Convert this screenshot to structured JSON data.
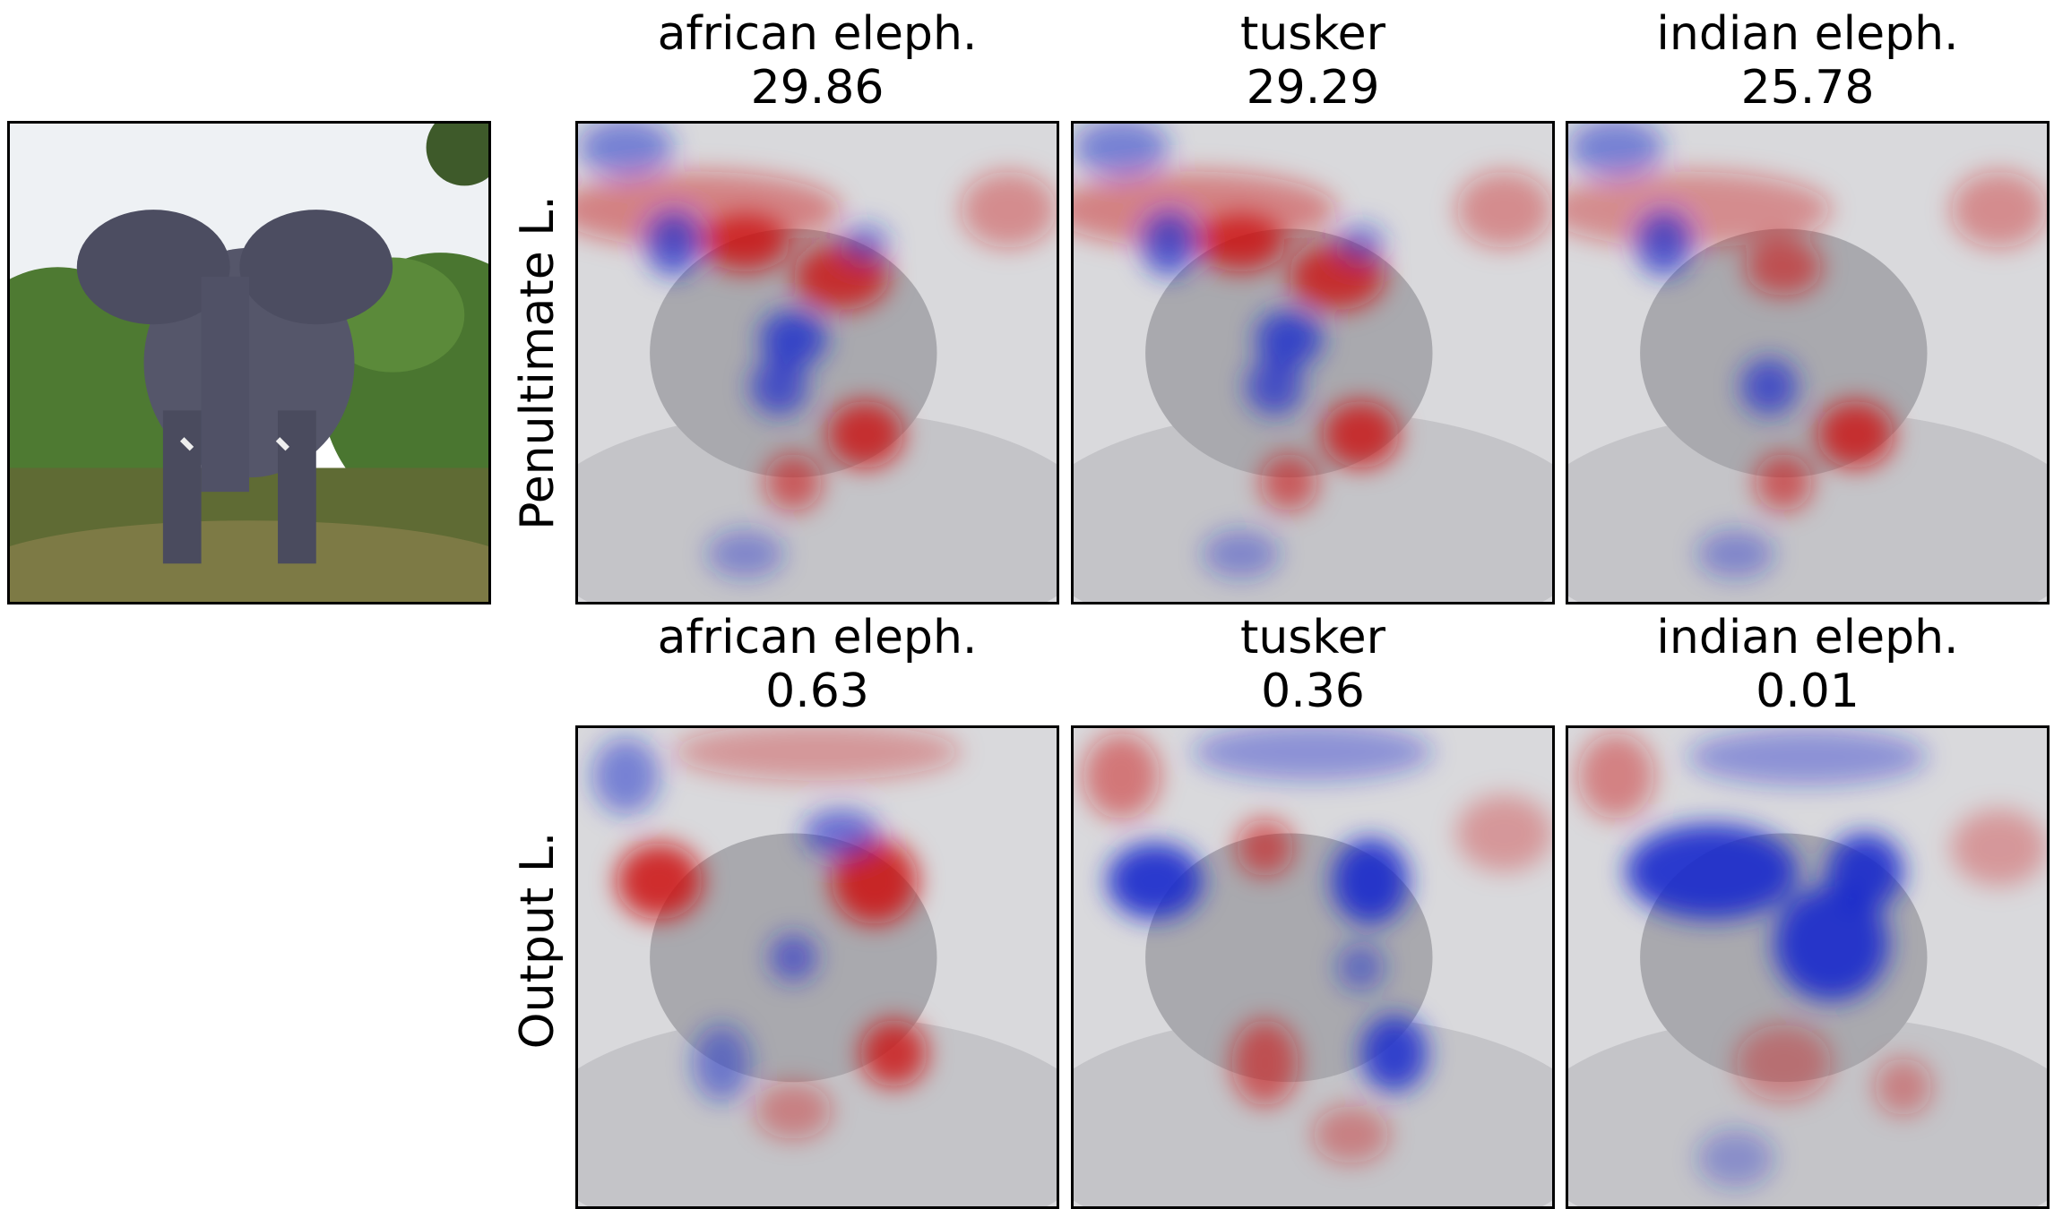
{
  "row_labels": [
    "Penultimate L.",
    "Output L."
  ],
  "rows": [
    {
      "columns": [
        {
          "label": "african eleph.",
          "score": "29.86"
        },
        {
          "label": "tusker",
          "score": "29.29"
        },
        {
          "label": "indian eleph.",
          "score": "25.78"
        }
      ]
    },
    {
      "columns": [
        {
          "label": "african eleph.",
          "score": "0.63"
        },
        {
          "label": "tusker",
          "score": "0.36"
        },
        {
          "label": "indian eleph.",
          "score": "0.01"
        }
      ]
    }
  ],
  "colors": {
    "positive": "#cc1111",
    "negative": "#1a2acc"
  }
}
